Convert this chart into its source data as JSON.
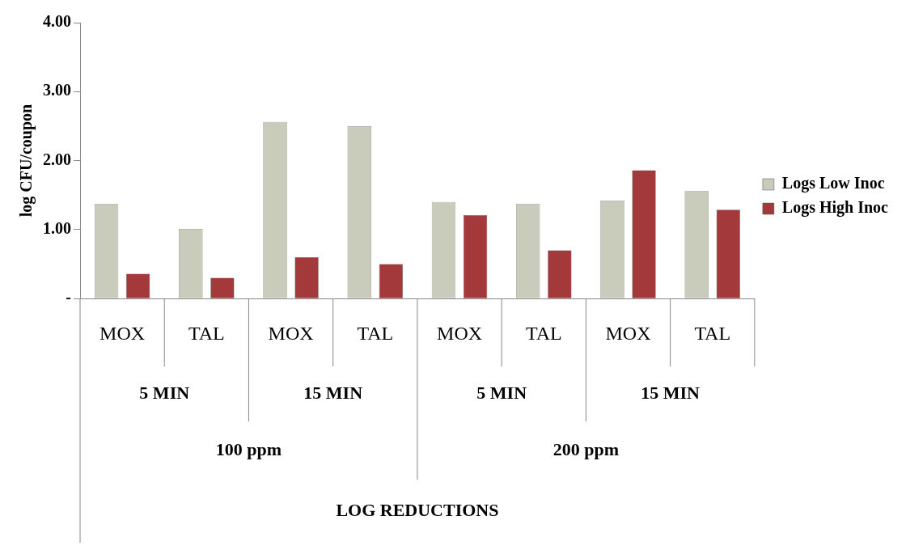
{
  "chart_data": {
    "type": "bar",
    "ylabel": "log CFU/coupon",
    "categories": [
      "MOX",
      "TAL",
      "MOX",
      "TAL",
      "MOX",
      "TAL",
      "MOX",
      "TAL"
    ],
    "annotations": [
      "5 MIN",
      "15 MIN",
      "5 MIN",
      "15 MIN",
      "100 ppm",
      "200 ppm",
      "LOG REDUCTIONS"
    ],
    "series": [
      {
        "name": "Logs Low Inoc",
        "color": "#c9ccba",
        "values": [
          1.37,
          1.01,
          2.56,
          2.5,
          1.4,
          1.37,
          1.42,
          1.56
        ]
      },
      {
        "name": "Logs High Inoc",
        "color": "#a3393b",
        "values": [
          0.36,
          0.3,
          0.6,
          0.5,
          1.21,
          0.7,
          1.86,
          1.29
        ]
      }
    ],
    "ylim": [
      0,
      4
    ],
    "yticks": [
      {
        "value": 0,
        "label": "-"
      },
      {
        "value": 1,
        "label": "1.00"
      },
      {
        "value": 2,
        "label": "2.00"
      },
      {
        "value": 3,
        "label": "3.00"
      },
      {
        "value": 4,
        "label": "4.00"
      }
    ],
    "grid": false,
    "legend": "right"
  }
}
